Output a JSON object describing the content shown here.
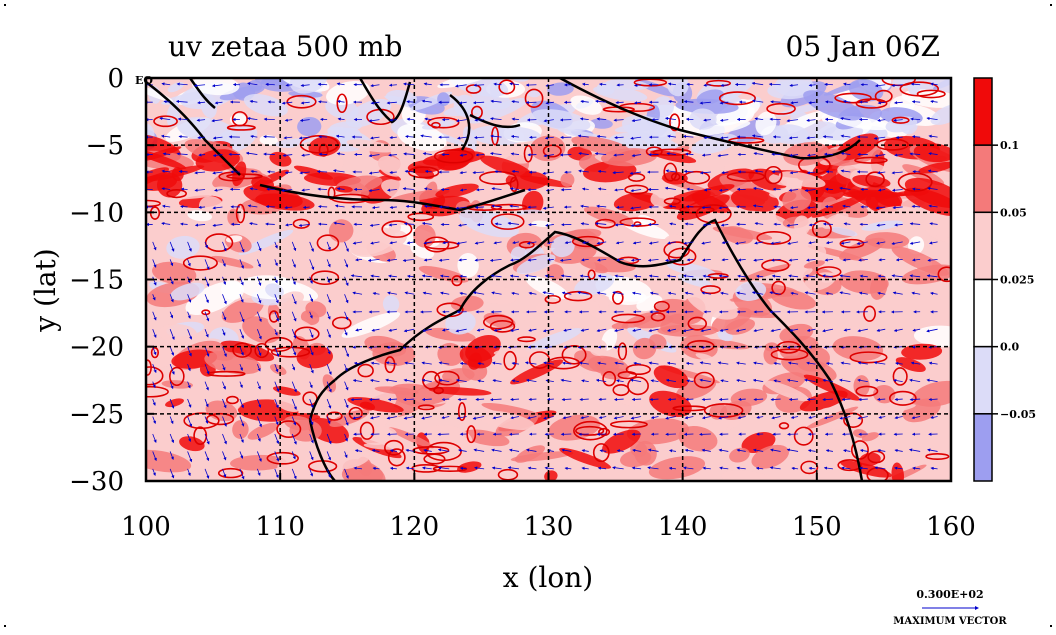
{
  "title_left": "uv zetaa 500 mb",
  "title_right": "05 Jan 06Z",
  "axes": {
    "xlabel": "x (lon)",
    "ylabel": "y (lat)",
    "x_range": [
      100,
      160
    ],
    "y_range": [
      -30,
      0
    ],
    "x_ticks": [
      "100",
      "110",
      "120",
      "130",
      "140",
      "150",
      "160"
    ],
    "y_ticks": [
      "0",
      "−5",
      "−10",
      "−15",
      "−20",
      "−25",
      "−30"
    ],
    "eq_label": "EQ"
  },
  "colorbar": {
    "labels": [
      "0.1",
      "0.05",
      "0.025",
      "0.0",
      "−0.05"
    ],
    "colors": [
      "#f00a0a",
      "#f47a7a",
      "#fbcdcd",
      "#ffffff",
      "#dcdcf8",
      "#9d9ef0"
    ]
  },
  "vector_key": {
    "value": "0.300E+02",
    "label": "MAXIMUM VECTOR"
  },
  "colors": {
    "vectors": "#0000cc",
    "contours": "#dd0000",
    "coast": "#000000",
    "grid": "#000000"
  }
}
